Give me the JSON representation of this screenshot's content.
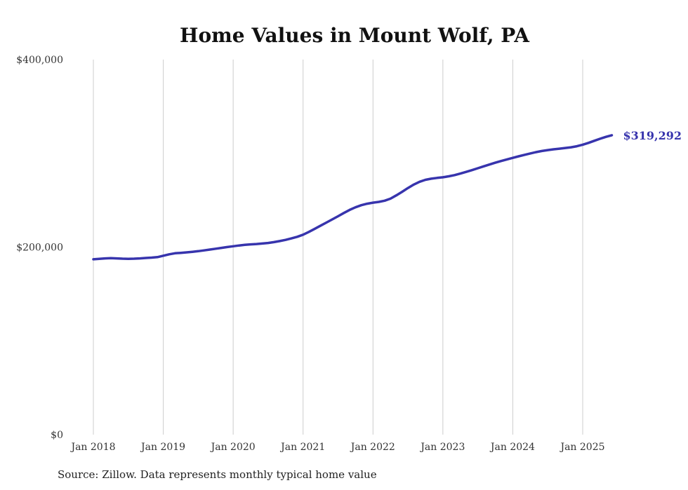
{
  "chart_data": {
    "type": "line",
    "title": "Home Values in Mount Wolf, PA",
    "source_note": "Source: Zillow. Data represents monthly typical home value",
    "series_name": "Typical home value",
    "x_start": "2018-01",
    "x_freq": "monthly",
    "x_tick_labels": [
      "Jan 2018",
      "Jan 2019",
      "Jan 2020",
      "Jan 2021",
      "Jan 2022",
      "Jan 2023",
      "Jan 2024",
      "Jan 2025"
    ],
    "y_ticks": [
      {
        "value": 0,
        "label": "$0"
      },
      {
        "value": 200000,
        "label": "$200,000"
      },
      {
        "value": 400000,
        "label": "$400,000"
      }
    ],
    "ylim": [
      0,
      400000
    ],
    "grid": "vertical-only",
    "legend": "none",
    "line_color": "#3734ad",
    "grid_color": "#cccccc",
    "end_label": "$319,292",
    "latest_value": 319292,
    "values": [
      187000,
      187500,
      188000,
      188200,
      188000,
      187700,
      187500,
      187700,
      188000,
      188400,
      188800,
      189300,
      190800,
      192300,
      193400,
      193900,
      194400,
      195000,
      195700,
      196500,
      197400,
      198300,
      199200,
      200100,
      200900,
      201700,
      202400,
      202900,
      203300,
      203800,
      204400,
      205300,
      206400,
      207700,
      209300,
      211000,
      213200,
      216200,
      219500,
      222900,
      226200,
      229500,
      232900,
      236400,
      239700,
      242500,
      244700,
      246300,
      247400,
      248200,
      249500,
      251700,
      255200,
      259000,
      263000,
      266700,
      269700,
      271800,
      273000,
      273800,
      274500,
      275500,
      276800,
      278400,
      280200,
      282100,
      284100,
      286100,
      288100,
      290000,
      291800,
      293500,
      295200,
      296800,
      298400,
      299900,
      301300,
      302500,
      303500,
      304300,
      305000,
      305700,
      306500,
      307600,
      309200,
      311200,
      313400,
      315600,
      317600,
      319292
    ]
  }
}
